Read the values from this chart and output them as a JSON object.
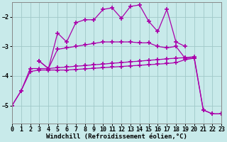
{
  "background_color": "#c8eaea",
  "grid_color": "#a0c8c8",
  "line_color": "#aa00aa",
  "marker": "+",
  "markersize": 4,
  "markeredgewidth": 1.2,
  "linewidth": 0.9,
  "xlabel": "Windchill (Refroidissement éolien,°C)",
  "xlabel_fontsize": 6.5,
  "tick_fontsize": 6,
  "ylim": [
    -5.6,
    -1.5
  ],
  "xlim": [
    0,
    23
  ],
  "yticks": [
    -5,
    -4,
    -3,
    -2
  ],
  "xticks": [
    0,
    1,
    2,
    3,
    4,
    5,
    6,
    7,
    8,
    9,
    10,
    11,
    12,
    13,
    14,
    15,
    16,
    17,
    18,
    19,
    20,
    21,
    22,
    23
  ],
  "s1_x": [
    3,
    4,
    5,
    6,
    7,
    8,
    9,
    10,
    11,
    12,
    13,
    14,
    15,
    16,
    17,
    18,
    19
  ],
  "s1_y": [
    -3.5,
    -3.75,
    -2.55,
    -2.85,
    -2.2,
    -2.1,
    -2.1,
    -1.75,
    -1.7,
    -2.05,
    -1.65,
    -1.6,
    -2.15,
    -2.5,
    -1.75,
    -2.85,
    -3.0
  ],
  "s2_x": [
    3,
    4,
    5,
    6,
    7,
    8,
    9,
    10,
    11,
    12,
    13,
    14,
    15,
    16,
    17,
    18,
    19,
    20
  ],
  "s2_y": [
    -3.5,
    -3.75,
    -3.1,
    -3.05,
    -3.0,
    -2.95,
    -2.9,
    -2.85,
    -2.85,
    -2.85,
    -2.85,
    -2.88,
    -2.88,
    -3.0,
    -3.05,
    -3.0,
    -3.4,
    -3.4
  ],
  "s3_x": [
    0,
    1,
    2,
    3,
    4,
    5,
    6,
    7,
    8,
    9,
    10,
    11,
    12,
    13,
    14,
    15,
    16,
    17,
    18,
    19,
    20,
    21,
    22,
    23
  ],
  "s3_y": [
    -5.0,
    -4.5,
    -3.75,
    -3.75,
    -3.75,
    -3.72,
    -3.7,
    -3.67,
    -3.65,
    -3.62,
    -3.6,
    -3.57,
    -3.55,
    -3.52,
    -3.5,
    -3.47,
    -3.45,
    -3.42,
    -3.4,
    -3.38,
    -3.35,
    -5.15,
    -5.28,
    -5.28
  ],
  "s4_x": [
    0,
    1,
    2,
    3,
    4,
    5,
    6,
    7,
    8,
    9,
    10,
    11,
    12,
    13,
    14,
    15,
    16,
    17,
    18,
    19,
    20,
    21,
    22,
    23
  ],
  "s4_y": [
    -5.0,
    -4.5,
    -3.85,
    -3.8,
    -3.8,
    -3.8,
    -3.8,
    -3.78,
    -3.76,
    -3.74,
    -3.72,
    -3.7,
    -3.68,
    -3.66,
    -3.64,
    -3.62,
    -3.6,
    -3.58,
    -3.55,
    -3.45,
    -3.4,
    -5.15,
    -5.28,
    -5.28
  ]
}
